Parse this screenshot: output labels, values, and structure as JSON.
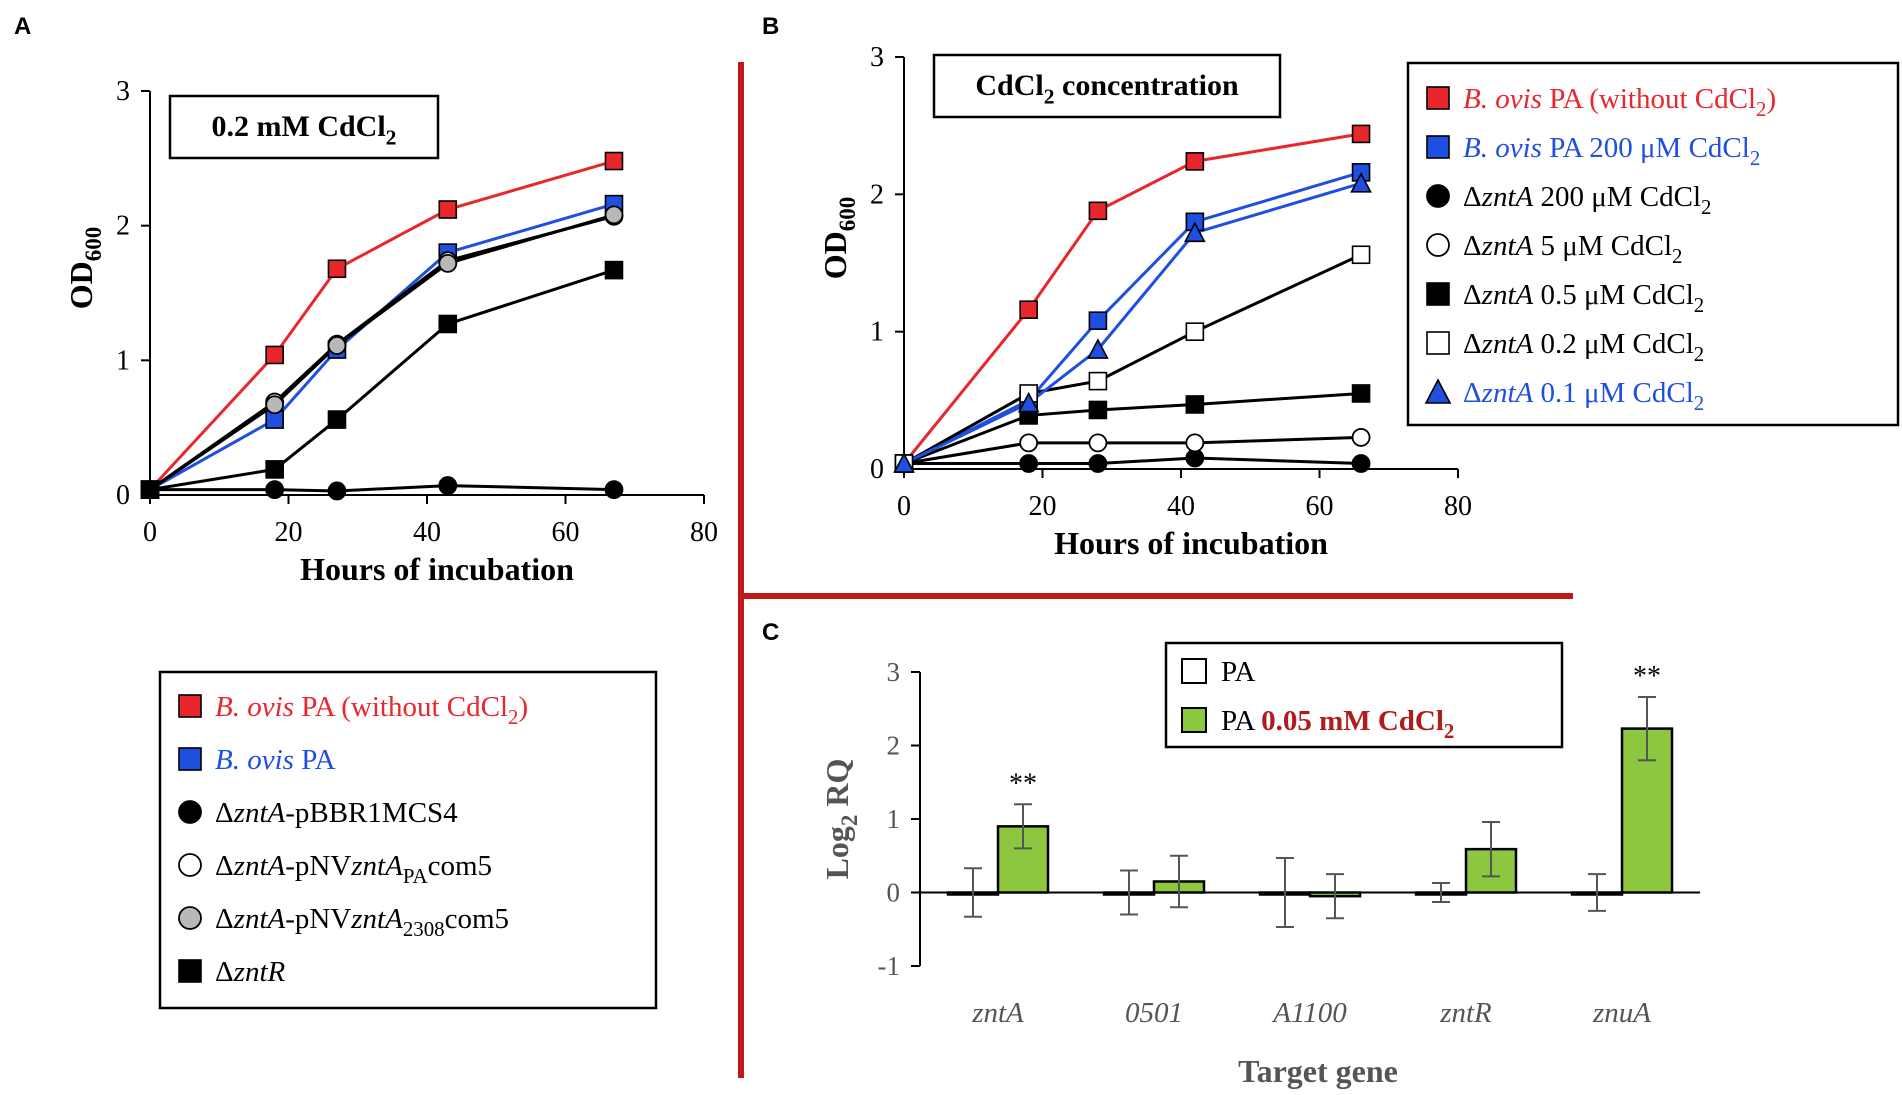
{
  "chart_data": [
    {
      "panel": "A",
      "type": "line",
      "box_label": {
        "text": "0.2 mM CdCl",
        "sub": "2"
      },
      "ylabel": {
        "text": "OD",
        "sub": "600"
      },
      "xlabel": "Hours of incubation",
      "xlim": [
        0,
        80
      ],
      "ylim": [
        0,
        3
      ],
      "xticks": [
        0,
        20,
        40,
        60,
        80
      ],
      "yticks": [
        0,
        1,
        2,
        3
      ],
      "series": [
        {
          "name": "B. ovis PA (without CdCl2)",
          "marker": "square",
          "fill": "#e8262b",
          "line": "#e8262b",
          "points": [
            [
              0,
              0.04
            ],
            [
              18,
              1.04
            ],
            [
              27,
              1.68
            ],
            [
              43,
              2.12
            ],
            [
              67,
              2.48
            ]
          ]
        },
        {
          "name": "B. ovis PA",
          "marker": "square",
          "fill": "#1f4fe0",
          "line": "#1f4fe0",
          "points": [
            [
              0,
              0.04
            ],
            [
              18,
              0.56
            ],
            [
              27,
              1.08
            ],
            [
              43,
              1.8
            ],
            [
              67,
              2.16
            ]
          ]
        },
        {
          "name": "ΔzntA-pBBR1MCS4",
          "marker": "circle",
          "fill": "#000000",
          "line": "#000000",
          "points": [
            [
              0,
              0.04
            ],
            [
              18,
              0.04
            ],
            [
              27,
              0.03
            ],
            [
              43,
              0.07
            ],
            [
              67,
              0.04
            ]
          ]
        },
        {
          "name": "ΔzntA-pNVzntAPAcom5",
          "marker": "circle",
          "fill": "#ffffff",
          "line": "#000000",
          "points": [
            [
              0,
              0.04
            ],
            [
              18,
              0.69
            ],
            [
              27,
              1.12
            ],
            [
              43,
              1.74
            ],
            [
              67,
              2.07
            ]
          ]
        },
        {
          "name": "ΔzntA-pNVzntA2308com5",
          "marker": "circle",
          "fill": "#b8b8b8",
          "line": "#000000",
          "points": [
            [
              0,
              0.04
            ],
            [
              18,
              0.67
            ],
            [
              27,
              1.11
            ],
            [
              43,
              1.72
            ],
            [
              67,
              2.08
            ]
          ]
        },
        {
          "name": "ΔzntR",
          "marker": "square",
          "fill": "#000000",
          "line": "#000000",
          "points": [
            [
              0,
              0.04
            ],
            [
              18,
              0.19
            ],
            [
              27,
              0.56
            ],
            [
              43,
              1.27
            ],
            [
              67,
              1.67
            ]
          ]
        }
      ],
      "legend": [
        {
          "marker": "square",
          "fill": "#e8262b",
          "color": "#e8262b",
          "parts": [
            {
              "t": "B. ovis",
              "i": true
            },
            {
              "t": " PA (without CdCl"
            },
            {
              "t": "2",
              "sub": true
            },
            {
              "t": ")"
            }
          ]
        },
        {
          "marker": "square",
          "fill": "#1f4fe0",
          "color": "#1f4fe0",
          "parts": [
            {
              "t": "B. ovis",
              "i": true
            },
            {
              "t": " PA"
            }
          ]
        },
        {
          "marker": "circle",
          "fill": "#000000",
          "color": "#000000",
          "parts": [
            {
              "t": "Δ"
            },
            {
              "t": "zntA",
              "i": true
            },
            {
              "t": "-pBBR1MCS4"
            }
          ]
        },
        {
          "marker": "circle",
          "fill": "#ffffff",
          "color": "#000000",
          "parts": [
            {
              "t": "Δ"
            },
            {
              "t": "zntA",
              "i": true
            },
            {
              "t": "-pNV"
            },
            {
              "t": "zntA",
              "i": true
            },
            {
              "t": "PA",
              "sub": true
            },
            {
              "t": "com5"
            }
          ]
        },
        {
          "marker": "circle",
          "fill": "#b8b8b8",
          "color": "#000000",
          "parts": [
            {
              "t": "Δ"
            },
            {
              "t": "zntA",
              "i": true
            },
            {
              "t": "-pNV"
            },
            {
              "t": "zntA",
              "i": true
            },
            {
              "t": "2308",
              "sub": true
            },
            {
              "t": "com5"
            }
          ]
        },
        {
          "marker": "square",
          "fill": "#000000",
          "color": "#000000",
          "parts": [
            {
              "t": "Δ"
            },
            {
              "t": "zntR",
              "i": true
            }
          ]
        }
      ]
    },
    {
      "panel": "B",
      "type": "line",
      "box_label": {
        "text": "CdCl",
        "sub": "2",
        "after": " concentration"
      },
      "ylabel": {
        "text": "OD",
        "sub": "600"
      },
      "xlabel": "Hours of incubation",
      "xlim": [
        0,
        80
      ],
      "ylim": [
        0,
        3
      ],
      "xticks": [
        0,
        20,
        40,
        60,
        80
      ],
      "yticks": [
        0,
        1,
        2,
        3
      ],
      "series": [
        {
          "name": "B. ovis PA (without CdCl2)",
          "marker": "square",
          "fill": "#e8262b",
          "line": "#e8262b",
          "points": [
            [
              0,
              0.04
            ],
            [
              18,
              1.16
            ],
            [
              28,
              1.88
            ],
            [
              42,
              2.24
            ],
            [
              66,
              2.44
            ]
          ]
        },
        {
          "name": "B. ovis PA 200 μM CdCl2",
          "marker": "square",
          "fill": "#1f4fe0",
          "line": "#1f4fe0",
          "points": [
            [
              0,
              0.04
            ],
            [
              18,
              0.5
            ],
            [
              28,
              1.08
            ],
            [
              42,
              1.8
            ],
            [
              66,
              2.16
            ]
          ]
        },
        {
          "name": "ΔzntA 200 μM CdCl2",
          "marker": "circle",
          "fill": "#000000",
          "line": "#000000",
          "points": [
            [
              0,
              0.04
            ],
            [
              18,
              0.04
            ],
            [
              28,
              0.04
            ],
            [
              42,
              0.08
            ],
            [
              66,
              0.04
            ]
          ]
        },
        {
          "name": "ΔzntA 5 μM CdCl2",
          "marker": "circle",
          "fill": "#ffffff",
          "line": "#000000",
          "points": [
            [
              0,
              0.04
            ],
            [
              18,
              0.19
            ],
            [
              28,
              0.19
            ],
            [
              42,
              0.19
            ],
            [
              66,
              0.23
            ]
          ]
        },
        {
          "name": "ΔzntA 0.5 μM CdCl2",
          "marker": "square",
          "fill": "#000000",
          "line": "#000000",
          "points": [
            [
              0,
              0.04
            ],
            [
              18,
              0.39
            ],
            [
              28,
              0.43
            ],
            [
              42,
              0.47
            ],
            [
              66,
              0.55
            ]
          ]
        },
        {
          "name": "ΔzntA 0.2 μM CdCl2",
          "marker": "square",
          "fill": "#ffffff",
          "line": "#000000",
          "points": [
            [
              0,
              0.04
            ],
            [
              18,
              0.55
            ],
            [
              28,
              0.64
            ],
            [
              42,
              1.0
            ],
            [
              66,
              1.56
            ]
          ]
        },
        {
          "name": "ΔzntA 0.1 μM CdCl2",
          "marker": "triangle",
          "fill": "#1f4fe0",
          "line": "#1f4fe0",
          "points": [
            [
              0,
              0.04
            ],
            [
              18,
              0.48
            ],
            [
              28,
              0.87
            ],
            [
              42,
              1.72
            ],
            [
              66,
              2.08
            ]
          ]
        }
      ],
      "legend": [
        {
          "marker": "square",
          "fill": "#e8262b",
          "color": "#e8262b",
          "parts": [
            {
              "t": "B. ovis",
              "i": true
            },
            {
              "t": " PA (without CdCl"
            },
            {
              "t": "2",
              "sub": true
            },
            {
              "t": ")"
            }
          ]
        },
        {
          "marker": "square",
          "fill": "#1f4fe0",
          "color": "#1f4fe0",
          "parts": [
            {
              "t": "B. ovis",
              "i": true
            },
            {
              "t": " PA 200 μM CdCl"
            },
            {
              "t": "2",
              "sub": true
            }
          ]
        },
        {
          "marker": "circle",
          "fill": "#000000",
          "color": "#000000",
          "parts": [
            {
              "t": "Δ"
            },
            {
              "t": "zntA",
              "i": true
            },
            {
              "t": " 200 μM CdCl"
            },
            {
              "t": "2",
              "sub": true
            }
          ]
        },
        {
          "marker": "circle",
          "fill": "#ffffff",
          "color": "#000000",
          "parts": [
            {
              "t": "Δ"
            },
            {
              "t": "zntA",
              "i": true
            },
            {
              "t": " 5 μM CdCl"
            },
            {
              "t": "2",
              "sub": true
            }
          ]
        },
        {
          "marker": "square",
          "fill": "#000000",
          "color": "#000000",
          "parts": [
            {
              "t": "Δ"
            },
            {
              "t": "zntA",
              "i": true
            },
            {
              "t": " 0.5 μM CdCl"
            },
            {
              "t": "2",
              "sub": true
            }
          ]
        },
        {
          "marker": "square",
          "fill": "#ffffff",
          "color": "#000000",
          "parts": [
            {
              "t": "Δ"
            },
            {
              "t": "zntA",
              "i": true
            },
            {
              "t": " 0.2 μM CdCl"
            },
            {
              "t": "2",
              "sub": true
            }
          ]
        },
        {
          "marker": "triangle",
          "fill": "#1f4fe0",
          "color": "#1f4fe0",
          "parts": [
            {
              "t": "Δ"
            },
            {
              "t": "zntA",
              "i": true
            },
            {
              "t": " 0.1 μM CdCl"
            },
            {
              "t": "2",
              "sub": true
            }
          ]
        }
      ]
    },
    {
      "panel": "C",
      "type": "bar",
      "ylabel": {
        "text": "Log",
        "sub": "2",
        "after": " RQ"
      },
      "xlabel": "Target gene",
      "ylim": [
        -1,
        3
      ],
      "yticks": [
        -1,
        0,
        1,
        2,
        3
      ],
      "categories": [
        "zntA",
        "0501",
        "A1100",
        "zntR",
        "znuA"
      ],
      "series": [
        {
          "name": "PA",
          "fill": "#ffffff",
          "values": [
            0.0,
            0.0,
            0.0,
            0.0,
            0.0
          ],
          "errors": [
            0.33,
            0.3,
            0.47,
            0.13,
            0.25
          ]
        },
        {
          "name": "PA 0.05 mM CdCl2",
          "fill": "#8dc63f",
          "values": [
            0.9,
            0.15,
            -0.05,
            0.59,
            2.23
          ],
          "errors": [
            0.3,
            0.35,
            0.3,
            0.37,
            0.43
          ]
        }
      ],
      "significance": [
        "**",
        "",
        "",
        "",
        "**"
      ],
      "legend": [
        {
          "fill": "#ffffff",
          "parts": [
            {
              "t": "PA"
            }
          ]
        },
        {
          "fill": "#8dc63f",
          "parts": [
            {
              "t": "PA "
            },
            {
              "t": "0.05 mM CdCl",
              "b": true,
              "c": "#b01c1c"
            },
            {
              "t": "2",
              "sub": true,
              "b": true,
              "c": "#b01c1c"
            }
          ]
        }
      ]
    }
  ],
  "panel_labels": [
    "A",
    "B",
    "C"
  ],
  "colors": {
    "divider": "#c0181b",
    "axis": "#000000",
    "axis_c": "#555555",
    "bar_green": "#8dc63f"
  }
}
